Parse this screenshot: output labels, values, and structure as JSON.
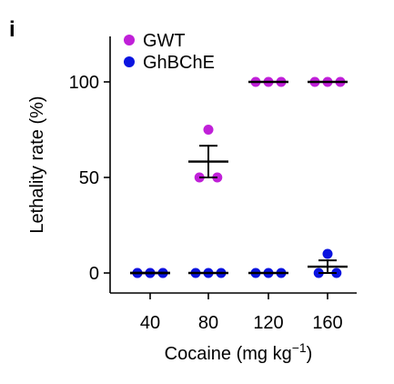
{
  "panel_label": "i",
  "chart_data": {
    "type": "scatter",
    "categories": [
      "40",
      "80",
      "120",
      "160"
    ],
    "xlabel": "Cocaine (mg kg",
    "xlabel_sup": "−1",
    "xlabel_close": ")",
    "ylabel": "Lethality rate (%)",
    "ylim": [
      -5,
      125
    ],
    "yticks": [
      0,
      50,
      100
    ],
    "grid": false,
    "legend_position": "top-left",
    "series": [
      {
        "name": "GWT",
        "color": "#c020d8",
        "points": [
          [
            0,
            0,
            0
          ],
          [
            75,
            50,
            50
          ],
          [
            100,
            100,
            100
          ],
          [
            100,
            100,
            100
          ]
        ],
        "mean": [
          0,
          58.3,
          100,
          100
        ],
        "sem": [
          0,
          8.3,
          0,
          0
        ]
      },
      {
        "name": "GhBChE",
        "color": "#0a14e0",
        "points": [
          [
            0,
            0,
            0
          ],
          [
            0,
            0,
            0
          ],
          [
            0,
            0,
            0
          ],
          [
            10,
            0,
            0
          ]
        ],
        "mean": [
          0,
          0,
          0,
          3.3
        ],
        "sem": [
          0,
          0,
          0,
          3.3
        ]
      }
    ]
  }
}
